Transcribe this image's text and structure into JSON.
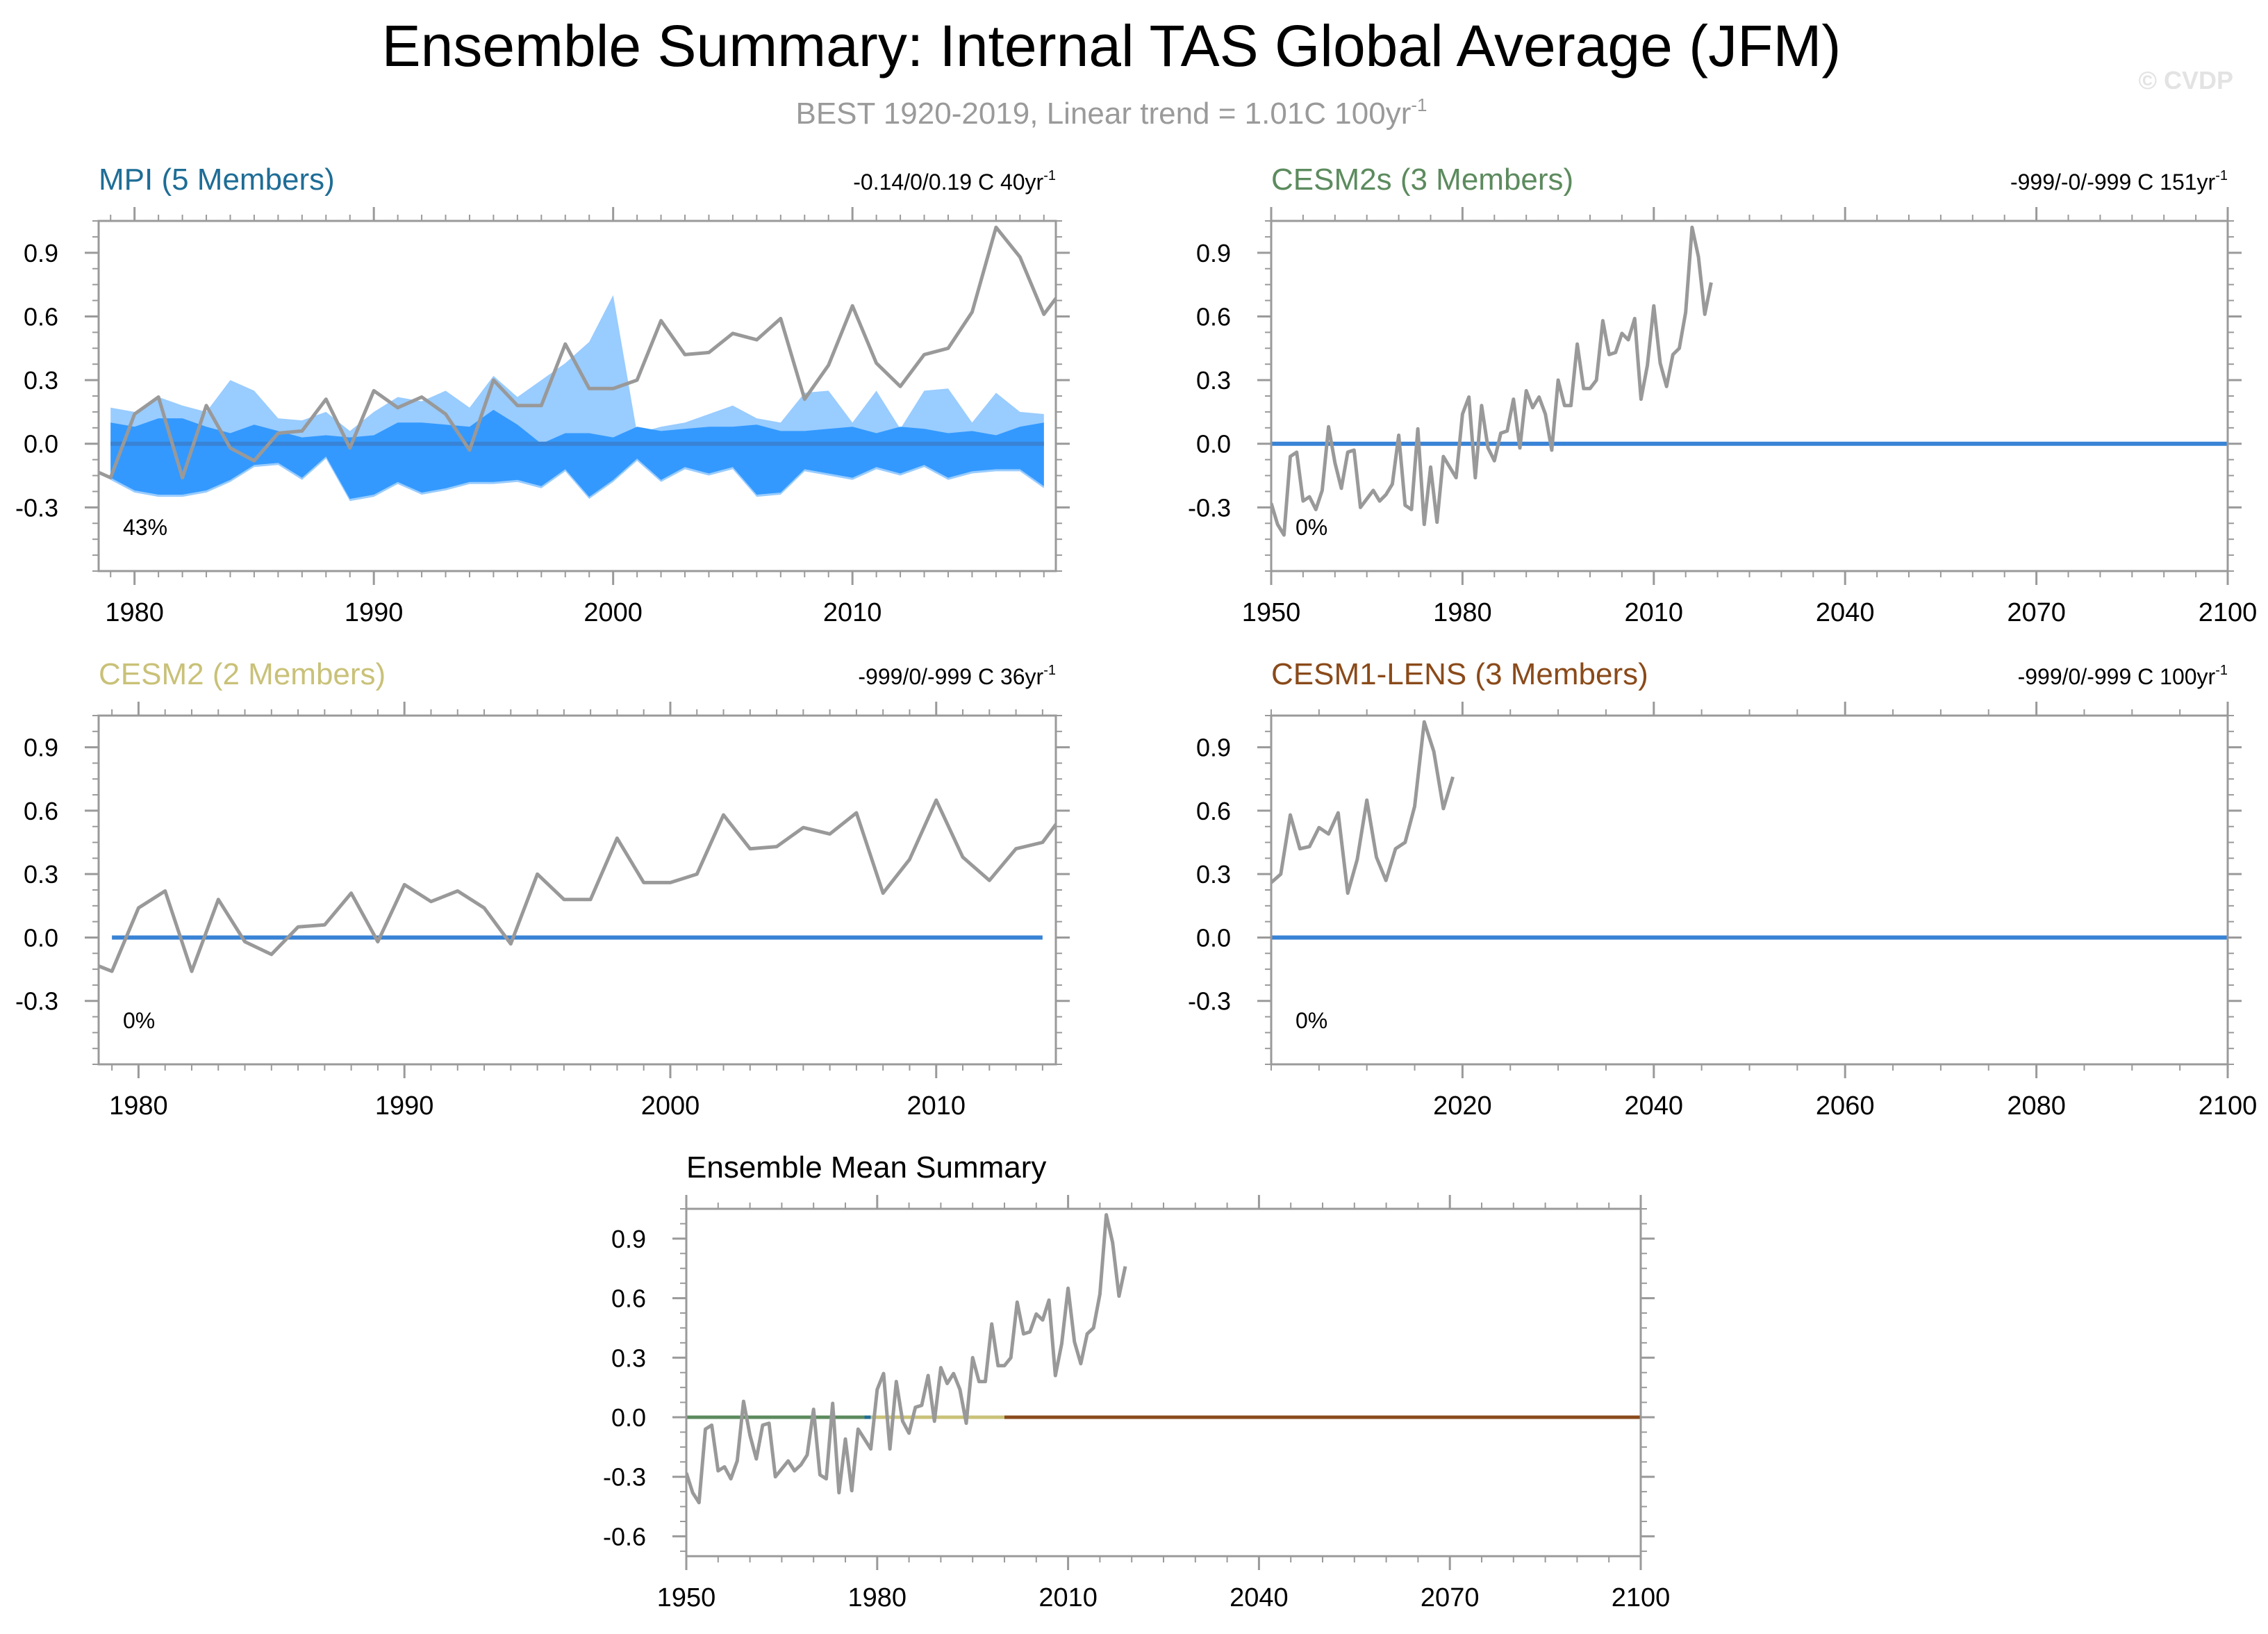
{
  "header": {
    "title": "Ensemble Summary: Internal TAS Global Average (JFM)",
    "subtitle_prefix": "BEST 1920-2019, Linear trend = 1.01C 100yr",
    "subtitle_sup": "-1",
    "watermark": "© CVDP"
  },
  "colors": {
    "obs": "#999999",
    "zero": "#3883d6",
    "spread_outer": "#99ccff",
    "spread_inner": "#3399ff",
    "axis": "#9a9a9a",
    "MPI": "#1e6d96",
    "CESM2s": "#5c8b5e",
    "CESM2": "#c9c178",
    "CESM1": "#8a4a1a"
  },
  "chart_data": [
    {
      "type": "line",
      "id": "mpi",
      "title": "MPI (5 Members)",
      "title_color": "#1e6d96",
      "trend_text": "-0.14/0/0.19 C 40yr",
      "trend_sup": "-1",
      "percent": "43%",
      "xlim": [
        1978.5,
        2018.5
      ],
      "ylim": [
        -0.6,
        1.05
      ],
      "xticks": [
        1980,
        1990,
        2000,
        2010
      ],
      "yticks": [
        0.9,
        0.6,
        0.3,
        0.0,
        -0.3
      ],
      "ytick_labels": [
        "0.9",
        "0.6",
        "0.3",
        "0.0",
        "-0.3"
      ],
      "obs_years": [
        1978,
        1979,
        1980,
        1981,
        1982,
        1983,
        1984,
        1985,
        1986,
        1987,
        1988,
        1989,
        1990,
        1991,
        1992,
        1993,
        1994,
        1995,
        1996,
        1997,
        1998,
        1999,
        2000,
        2001,
        2002,
        2003,
        2004,
        2005,
        2006,
        2007,
        2008,
        2009,
        2010,
        2011,
        2012,
        2013,
        2014,
        2015,
        2016,
        2017,
        2018,
        2019
      ],
      "obs_values": [
        -0.11,
        -0.16,
        0.14,
        0.22,
        -0.16,
        0.18,
        -0.02,
        -0.08,
        0.05,
        0.06,
        0.21,
        -0.02,
        0.25,
        0.17,
        0.22,
        0.14,
        -0.03,
        0.3,
        0.18,
        0.18,
        0.47,
        0.26,
        0.26,
        0.3,
        0.58,
        0.42,
        0.43,
        0.52,
        0.49,
        0.59,
        0.21,
        0.37,
        0.65,
        0.38,
        0.27,
        0.42,
        0.45,
        0.62,
        1.02,
        0.88,
        0.61,
        0.76
      ],
      "spread_years": [
        1979,
        1980,
        1981,
        1982,
        1983,
        1984,
        1985,
        1986,
        1987,
        1988,
        1989,
        1990,
        1991,
        1992,
        1993,
        1994,
        1995,
        1996,
        1997,
        1998,
        1999,
        2000,
        2001,
        2002,
        2003,
        2004,
        2005,
        2006,
        2007,
        2008,
        2009,
        2010,
        2011,
        2012,
        2013,
        2014,
        2015,
        2016,
        2017,
        2018
      ],
      "outer_upper": [
        0.17,
        0.15,
        0.22,
        0.18,
        0.15,
        0.3,
        0.25,
        0.12,
        0.11,
        0.15,
        0.06,
        0.15,
        0.22,
        0.2,
        0.25,
        0.17,
        0.32,
        0.22,
        0.3,
        0.38,
        0.48,
        0.7,
        0.05,
        0.08,
        0.1,
        0.14,
        0.18,
        0.12,
        0.1,
        0.24,
        0.25,
        0.1,
        0.25,
        0.07,
        0.25,
        0.26,
        0.1,
        0.24,
        0.15,
        0.14
      ],
      "inner_upper": [
        0.1,
        0.08,
        0.12,
        0.12,
        0.08,
        0.05,
        0.09,
        0.06,
        0.03,
        0.04,
        0.03,
        0.04,
        0.1,
        0.1,
        0.09,
        0.08,
        0.16,
        0.09,
        0.0,
        0.05,
        0.05,
        0.03,
        0.08,
        0.06,
        0.07,
        0.08,
        0.08,
        0.09,
        0.06,
        0.06,
        0.07,
        0.08,
        0.05,
        0.08,
        0.07,
        0.05,
        0.06,
        0.04,
        0.08,
        0.1
      ],
      "inner_lower": [
        -0.16,
        -0.22,
        -0.24,
        -0.24,
        -0.22,
        -0.17,
        -0.1,
        -0.09,
        -0.16,
        -0.06,
        -0.26,
        -0.24,
        -0.18,
        -0.23,
        -0.21,
        -0.18,
        -0.18,
        -0.17,
        -0.2,
        -0.12,
        -0.25,
        -0.17,
        -0.07,
        -0.17,
        -0.11,
        -0.14,
        -0.11,
        -0.24,
        -0.23,
        -0.12,
        -0.14,
        -0.16,
        -0.11,
        -0.14,
        -0.1,
        -0.16,
        -0.13,
        -0.12,
        -0.12,
        -0.2
      ],
      "outer_lower": [
        -0.17,
        -0.23,
        -0.25,
        -0.25,
        -0.23,
        -0.18,
        -0.11,
        -0.1,
        -0.17,
        -0.07,
        -0.27,
        -0.25,
        -0.19,
        -0.24,
        -0.22,
        -0.19,
        -0.19,
        -0.18,
        -0.21,
        -0.13,
        -0.26,
        -0.18,
        -0.08,
        -0.18,
        -0.12,
        -0.15,
        -0.12,
        -0.25,
        -0.24,
        -0.13,
        -0.15,
        -0.17,
        -0.12,
        -0.15,
        -0.11,
        -0.17,
        -0.14,
        -0.13,
        -0.13,
        -0.21
      ],
      "zero_line": [
        1979,
        2018
      ]
    },
    {
      "type": "line",
      "id": "cesm2s",
      "title": "CESM2s (3 Members)",
      "title_color": "#5c8b5e",
      "trend_text": "-999/-0/-999 C 151yr",
      "trend_sup": "-1",
      "percent": "0%",
      "xlim": [
        1950,
        2100
      ],
      "ylim": [
        -0.6,
        1.05
      ],
      "xticks": [
        1950,
        1980,
        2010,
        2040,
        2070,
        2100
      ],
      "yticks": [
        0.9,
        0.6,
        0.3,
        0.0,
        -0.3
      ],
      "ytick_labels": [
        "0.9",
        "0.6",
        "0.3",
        "0.0",
        "-0.3"
      ],
      "obs_years": [
        1950,
        1951,
        1952,
        1953,
        1954,
        1955,
        1956,
        1957,
        1958,
        1959,
        1960,
        1961,
        1962,
        1963,
        1964,
        1965,
        1966,
        1967,
        1968,
        1969,
        1970,
        1971,
        1972,
        1973,
        1974,
        1975,
        1976,
        1977,
        1978,
        1979,
        1980,
        1981,
        1982,
        1983,
        1984,
        1985,
        1986,
        1987,
        1988,
        1989,
        1990,
        1991,
        1992,
        1993,
        1994,
        1995,
        1996,
        1997,
        1998,
        1999,
        2000,
        2001,
        2002,
        2003,
        2004,
        2005,
        2006,
        2007,
        2008,
        2009,
        2010,
        2011,
        2012,
        2013,
        2014,
        2015,
        2016,
        2017,
        2018,
        2019
      ],
      "obs_values": [
        -0.28,
        -0.38,
        -0.43,
        -0.06,
        -0.04,
        -0.27,
        -0.25,
        -0.31,
        -0.22,
        0.08,
        -0.09,
        -0.21,
        -0.04,
        -0.03,
        -0.3,
        -0.26,
        -0.22,
        -0.27,
        -0.24,
        -0.19,
        0.04,
        -0.29,
        -0.31,
        0.07,
        -0.38,
        -0.11,
        -0.37,
        -0.06,
        -0.11,
        -0.16,
        0.14,
        0.22,
        -0.16,
        0.18,
        -0.02,
        -0.08,
        0.05,
        0.06,
        0.21,
        -0.02,
        0.25,
        0.17,
        0.22,
        0.14,
        -0.03,
        0.3,
        0.18,
        0.18,
        0.47,
        0.26,
        0.26,
        0.3,
        0.58,
        0.42,
        0.43,
        0.52,
        0.49,
        0.59,
        0.21,
        0.37,
        0.65,
        0.38,
        0.27,
        0.42,
        0.45,
        0.62,
        1.02,
        0.88,
        0.61,
        0.76
      ],
      "zero_line": [
        1950,
        2100
      ]
    },
    {
      "type": "line",
      "id": "cesm2",
      "title": "CESM2 (2 Members)",
      "title_color": "#c9c178",
      "trend_text": "-999/0/-999 C 36yr",
      "trend_sup": "-1",
      "percent": "0%",
      "xlim": [
        1978.5,
        2014.5
      ],
      "ylim": [
        -0.6,
        1.05
      ],
      "xticks": [
        1980,
        1990,
        2000,
        2010
      ],
      "yticks": [
        0.9,
        0.6,
        0.3,
        0.0,
        -0.3
      ],
      "ytick_labels": [
        "0.9",
        "0.6",
        "0.3",
        "0.0",
        "-0.3"
      ],
      "obs_years": [
        1978,
        1979,
        1980,
        1981,
        1982,
        1983,
        1984,
        1985,
        1986,
        1987,
        1988,
        1989,
        1990,
        1991,
        1992,
        1993,
        1994,
        1995,
        1996,
        1997,
        1998,
        1999,
        2000,
        2001,
        2002,
        2003,
        2004,
        2005,
        2006,
        2007,
        2008,
        2009,
        2010,
        2011,
        2012,
        2013,
        2014,
        2015
      ],
      "obs_values": [
        -0.11,
        -0.16,
        0.14,
        0.22,
        -0.16,
        0.18,
        -0.02,
        -0.08,
        0.05,
        0.06,
        0.21,
        -0.02,
        0.25,
        0.17,
        0.22,
        0.14,
        -0.03,
        0.3,
        0.18,
        0.18,
        0.47,
        0.26,
        0.26,
        0.3,
        0.58,
        0.42,
        0.43,
        0.52,
        0.49,
        0.59,
        0.21,
        0.37,
        0.65,
        0.38,
        0.27,
        0.42,
        0.45,
        0.62
      ],
      "zero_line": [
        1979,
        2014
      ]
    },
    {
      "type": "line",
      "id": "cesm1",
      "title": "CESM1-LENS (3 Members)",
      "title_color": "#8a4a1a",
      "trend_text": "-999/0/-999 C 100yr",
      "trend_sup": "-1",
      "percent": "0%",
      "xlim": [
        2000,
        2100
      ],
      "ylim": [
        -0.6,
        1.05
      ],
      "xticks": [
        2020,
        2040,
        2060,
        2080,
        2100
      ],
      "yticks": [
        0.9,
        0.6,
        0.3,
        0.0,
        -0.3
      ],
      "ytick_labels": [
        "0.9",
        "0.6",
        "0.3",
        "0.0",
        "-0.3"
      ],
      "obs_years": [
        2000,
        2001,
        2002,
        2003,
        2004,
        2005,
        2006,
        2007,
        2008,
        2009,
        2010,
        2011,
        2012,
        2013,
        2014,
        2015,
        2016,
        2017,
        2018,
        2019
      ],
      "obs_values": [
        0.26,
        0.3,
        0.58,
        0.42,
        0.43,
        0.52,
        0.49,
        0.59,
        0.21,
        0.37,
        0.65,
        0.38,
        0.27,
        0.42,
        0.45,
        0.62,
        1.02,
        0.88,
        0.61,
        0.76
      ],
      "zero_line": [
        2000,
        2100
      ]
    },
    {
      "type": "line",
      "id": "mean",
      "title": "Ensemble Mean Summary",
      "title_color": "#000000",
      "xlim": [
        1950,
        2100
      ],
      "ylim": [
        -0.7,
        1.05
      ],
      "xticks": [
        1950,
        1980,
        2010,
        2040,
        2070,
        2100
      ],
      "yticks": [
        0.9,
        0.6,
        0.3,
        0.0,
        -0.3,
        -0.6
      ],
      "ytick_labels": [
        "0.9",
        "0.6",
        "0.3",
        "0.0",
        "-0.3",
        "-0.6"
      ],
      "obs_years": [
        1950,
        1951,
        1952,
        1953,
        1954,
        1955,
        1956,
        1957,
        1958,
        1959,
        1960,
        1961,
        1962,
        1963,
        1964,
        1965,
        1966,
        1967,
        1968,
        1969,
        1970,
        1971,
        1972,
        1973,
        1974,
        1975,
        1976,
        1977,
        1978,
        1979,
        1980,
        1981,
        1982,
        1983,
        1984,
        1985,
        1986,
        1987,
        1988,
        1989,
        1990,
        1991,
        1992,
        1993,
        1994,
        1995,
        1996,
        1997,
        1998,
        1999,
        2000,
        2001,
        2002,
        2003,
        2004,
        2005,
        2006,
        2007,
        2008,
        2009,
        2010,
        2011,
        2012,
        2013,
        2014,
        2015,
        2016,
        2017,
        2018,
        2019
      ],
      "obs_values": [
        -0.28,
        -0.38,
        -0.43,
        -0.06,
        -0.04,
        -0.27,
        -0.25,
        -0.31,
        -0.22,
        0.08,
        -0.09,
        -0.21,
        -0.04,
        -0.03,
        -0.3,
        -0.26,
        -0.22,
        -0.27,
        -0.24,
        -0.19,
        0.04,
        -0.29,
        -0.31,
        0.07,
        -0.38,
        -0.11,
        -0.37,
        -0.06,
        -0.11,
        -0.16,
        0.14,
        0.22,
        -0.16,
        0.18,
        -0.02,
        -0.08,
        0.05,
        0.06,
        0.21,
        -0.02,
        0.25,
        0.17,
        0.22,
        0.14,
        -0.03,
        0.3,
        0.18,
        0.18,
        0.47,
        0.26,
        0.26,
        0.3,
        0.58,
        0.42,
        0.43,
        0.52,
        0.49,
        0.59,
        0.21,
        0.37,
        0.65,
        0.38,
        0.27,
        0.42,
        0.45,
        0.62,
        1.02,
        0.88,
        0.61,
        0.76
      ],
      "segments": [
        {
          "name": "CESM2s",
          "from": 1950,
          "to": 1978,
          "color": "#5c8b5e"
        },
        {
          "name": "MPI",
          "from": 1978,
          "to": 1979,
          "color": "#1e6d96"
        },
        {
          "name": "CESM2",
          "from": 1979,
          "to": 2000,
          "color": "#c9c178"
        },
        {
          "name": "CESM1",
          "from": 2000,
          "to": 2100,
          "color": "#8a4a1a"
        }
      ]
    }
  ]
}
